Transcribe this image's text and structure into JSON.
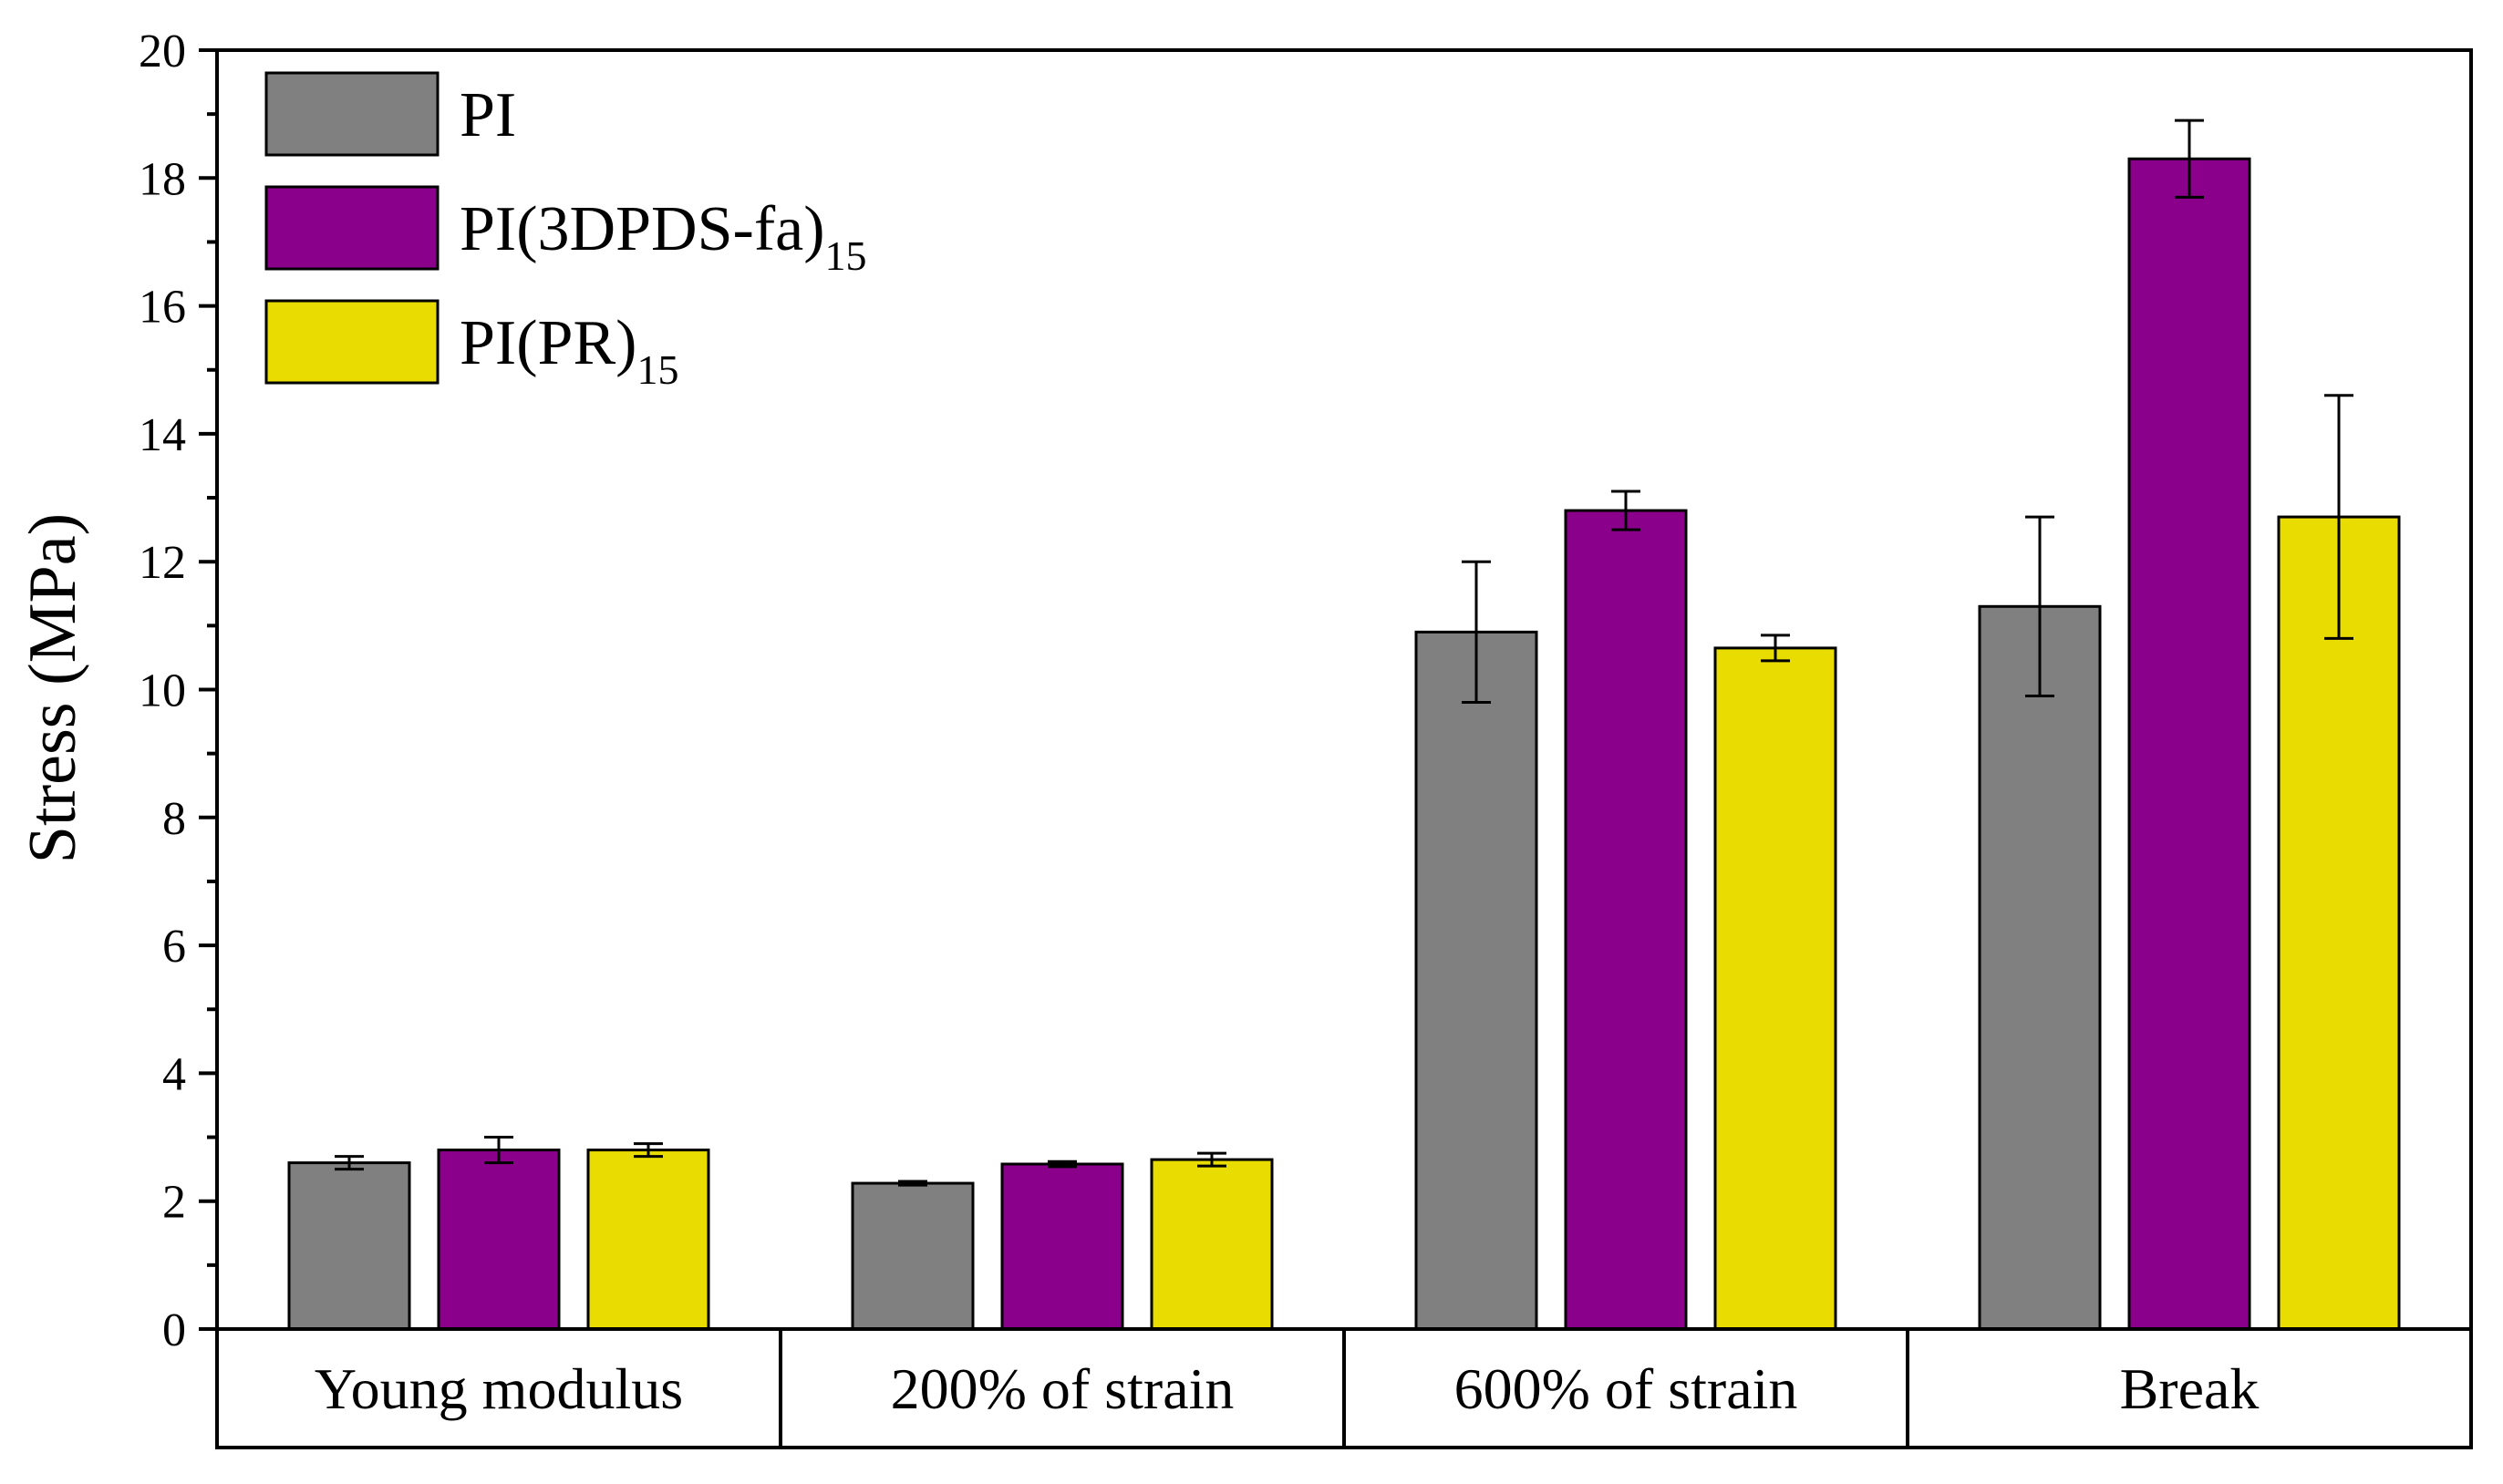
{
  "chart_data": {
    "type": "bar",
    "title": "",
    "ylabel": "Stress (MPa)",
    "xlabel": "",
    "ylim": [
      0,
      20
    ],
    "yticks": [
      "0",
      "2",
      "4",
      "6",
      "8",
      "10",
      "12",
      "14",
      "16",
      "18",
      "20"
    ],
    "categories": [
      "Young modulus",
      "200% of strain",
      "600% of strain",
      "Break"
    ],
    "legend_position": "top-left",
    "series": [
      {
        "name": "PI",
        "label_main": "PI",
        "label_sub": "",
        "color": "#808080",
        "values": [
          2.6,
          2.28,
          10.9,
          11.3
        ],
        "errors": [
          0.1,
          0.03,
          1.1,
          1.4
        ]
      },
      {
        "name": "PI(3DPDS-fa)15",
        "label_main": "PI(3DPDS-fa)",
        "label_sub": "15",
        "color": "#8b008b",
        "values": [
          2.8,
          2.58,
          12.8,
          18.3
        ],
        "errors": [
          0.2,
          0.04,
          0.3,
          0.6
        ]
      },
      {
        "name": "PI(PR)15",
        "label_main": "PI(PR)",
        "label_sub": "15",
        "color": "#e8dc00",
        "values": [
          2.8,
          2.65,
          10.65,
          12.7
        ],
        "errors": [
          0.1,
          0.1,
          0.2,
          1.9
        ]
      }
    ]
  }
}
